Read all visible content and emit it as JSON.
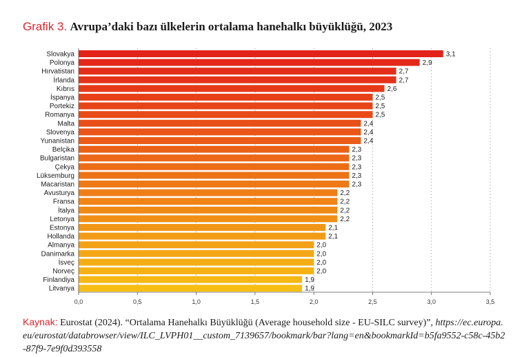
{
  "title_prefix": "Grafik 3.",
  "title_main": "Avrupa’daki bazı ülkelerin ortalama hanehalkı büyüklüğü, 2023",
  "source": {
    "label": "Kaynak:",
    "text": "Eurostat (2024). “Ortalama Hanehalkı Büyüklüğü (Average household size - EU-SILC survey)”,",
    "url": "https://ec.europa.eu/eurostat/databrowser/view/ILC_LVPH01__custom_7139657/bookmark/bar?lang=en&bookmarkId=b5fa9552-c58c-45b2-87f9-7e9f0d393558"
  },
  "colors": {
    "accent": "#d8262f",
    "bar_top": "#e32219",
    "bar_bottom": "#f7be15",
    "grid": "#9a9a9a"
  },
  "chart_data": {
    "type": "bar",
    "orientation": "horizontal",
    "title": "Avrupa’daki bazı ülkelerin ortalama hanehalkı büyüklüğü, 2023",
    "xlabel": "",
    "ylabel": "",
    "xlim": [
      0,
      3.5
    ],
    "xticks": [
      0,
      0.5,
      1,
      1.5,
      2,
      2.5,
      3,
      3.5
    ],
    "xtick_labels": [
      "0,0",
      "0,5",
      "1,0",
      "1,5",
      "2,0",
      "2,5",
      "3,0",
      "3,5"
    ],
    "grid": "vertical dotted",
    "categories": [
      "Slovakya",
      "Polonya",
      "Hırvatistan",
      "İrlanda",
      "Kıbrıs",
      "İspanya",
      "Portekiz",
      "Romanya",
      "Malta",
      "Slovenya",
      "Yunanistan",
      "Belçika",
      "Bulgaristan",
      "Çekya",
      "Lüksemburg",
      "Macaristan",
      "Avusturya",
      "Fransa",
      "İtalya",
      "Letonya",
      "Estonya",
      "Hollanda",
      "Almanya",
      "Danimarka",
      "İsveç",
      "Norveç",
      "Finlandiya",
      "Litvanya"
    ],
    "values": [
      3.1,
      2.9,
      2.7,
      2.7,
      2.6,
      2.5,
      2.5,
      2.5,
      2.4,
      2.4,
      2.4,
      2.3,
      2.3,
      2.3,
      2.3,
      2.3,
      2.2,
      2.2,
      2.2,
      2.2,
      2.1,
      2.1,
      2.0,
      2.0,
      2.0,
      2.0,
      1.9,
      1.9
    ],
    "value_labels": [
      "3,1",
      "2,9",
      "2,7",
      "2,7",
      "2,6",
      "2,5",
      "2,5",
      "2,5",
      "2,4",
      "2,4",
      "2,4",
      "2,3",
      "2,3",
      "2,3",
      "2,3",
      "2,3",
      "2,2",
      "2,2",
      "2,2",
      "2,2",
      "2,1",
      "2,1",
      "2,0",
      "2,0",
      "2,0",
      "2,0",
      "1,9",
      "1,9"
    ]
  }
}
